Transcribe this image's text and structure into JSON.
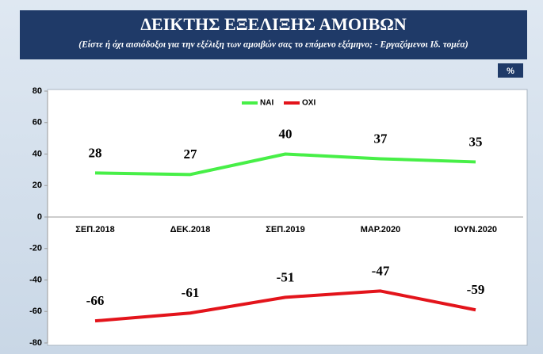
{
  "chart_data": {
    "type": "line",
    "title": "ΔΕΙΚΤΗΣ ΕΞΕΛΙΞΗΣ ΑΜΟΙΒΩΝ",
    "subtitle": "(Είστε ή όχι αισιόδοξοι για την εξέλιξη των αμοιβών σας το επόμενο εξάμηνο; - Εργαζόμενοι Ιδ. τομέα)",
    "unit": "%",
    "categories": [
      "ΣΕΠ.2018",
      "ΔΕΚ.2018",
      "ΣΕΠ.2019",
      "ΜΑΡ.2020",
      "ΙΟΥΝ.2020"
    ],
    "series": [
      {
        "name": "ΝΑΙ",
        "color": "#47ef47",
        "values": [
          28,
          27,
          40,
          37,
          35
        ]
      },
      {
        "name": "ΟΧΙ",
        "color": "#e3141b",
        "values": [
          -66,
          -61,
          -51,
          -47,
          -59
        ]
      }
    ],
    "ylim": [
      -80,
      80
    ],
    "yticks": [
      -80,
      -60,
      -40,
      -20,
      0,
      20,
      40,
      60,
      80
    ],
    "legend": "top"
  }
}
